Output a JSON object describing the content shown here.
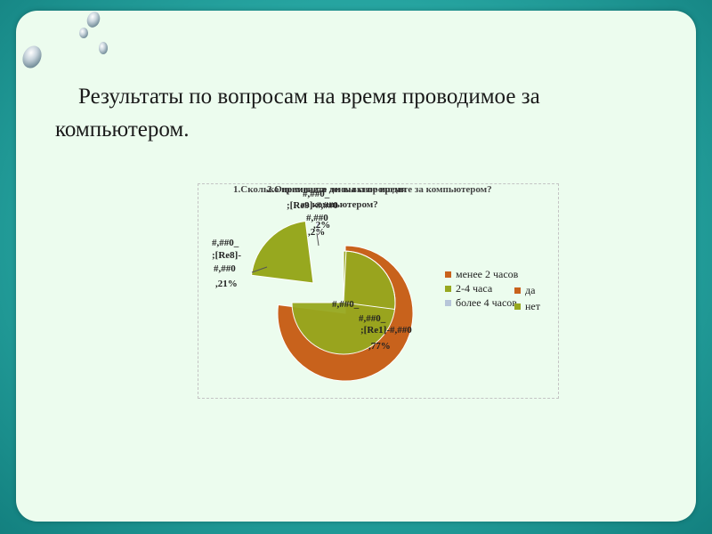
{
  "slide": {
    "heading": "Результаты по вопросам на время проводимое за компьютером."
  },
  "chart_data": {
    "type": "pie",
    "title_layers": [
      "1.Сколько времени в день вы проводите за компьютером?",
      "2.Оцениваете ли вы свое время",
      "за компьютером?"
    ],
    "categories": [
      "менее 2  часов",
      "2-4 часа",
      "более 4 часов"
    ],
    "values": [
      77,
      21,
      2
    ],
    "slice_labels": [
      [
        "#,##0_",
        ";[Re1]-#,##0",
        ",77%"
      ],
      [
        "#,##0_",
        ";[Re8]-",
        "#,##0",
        ",21%"
      ],
      [
        "#,##0",
        ";[Re9]-#,##0",
        ",2%"
      ]
    ],
    "overlap_labels": [
      "#,##0_",
      ",##0",
      ";[Re",
      ",2%"
    ],
    "legend": [
      "менее 2  часов",
      "2-4 часа",
      "более 4 часов"
    ],
    "legend2": [
      "да",
      "нет"
    ],
    "legend_position": "right",
    "colors": [
      "#c8621c",
      "#97a81f",
      "#b7c6d9"
    ],
    "colors2": [
      "#c8621c",
      "#97a81f"
    ]
  }
}
